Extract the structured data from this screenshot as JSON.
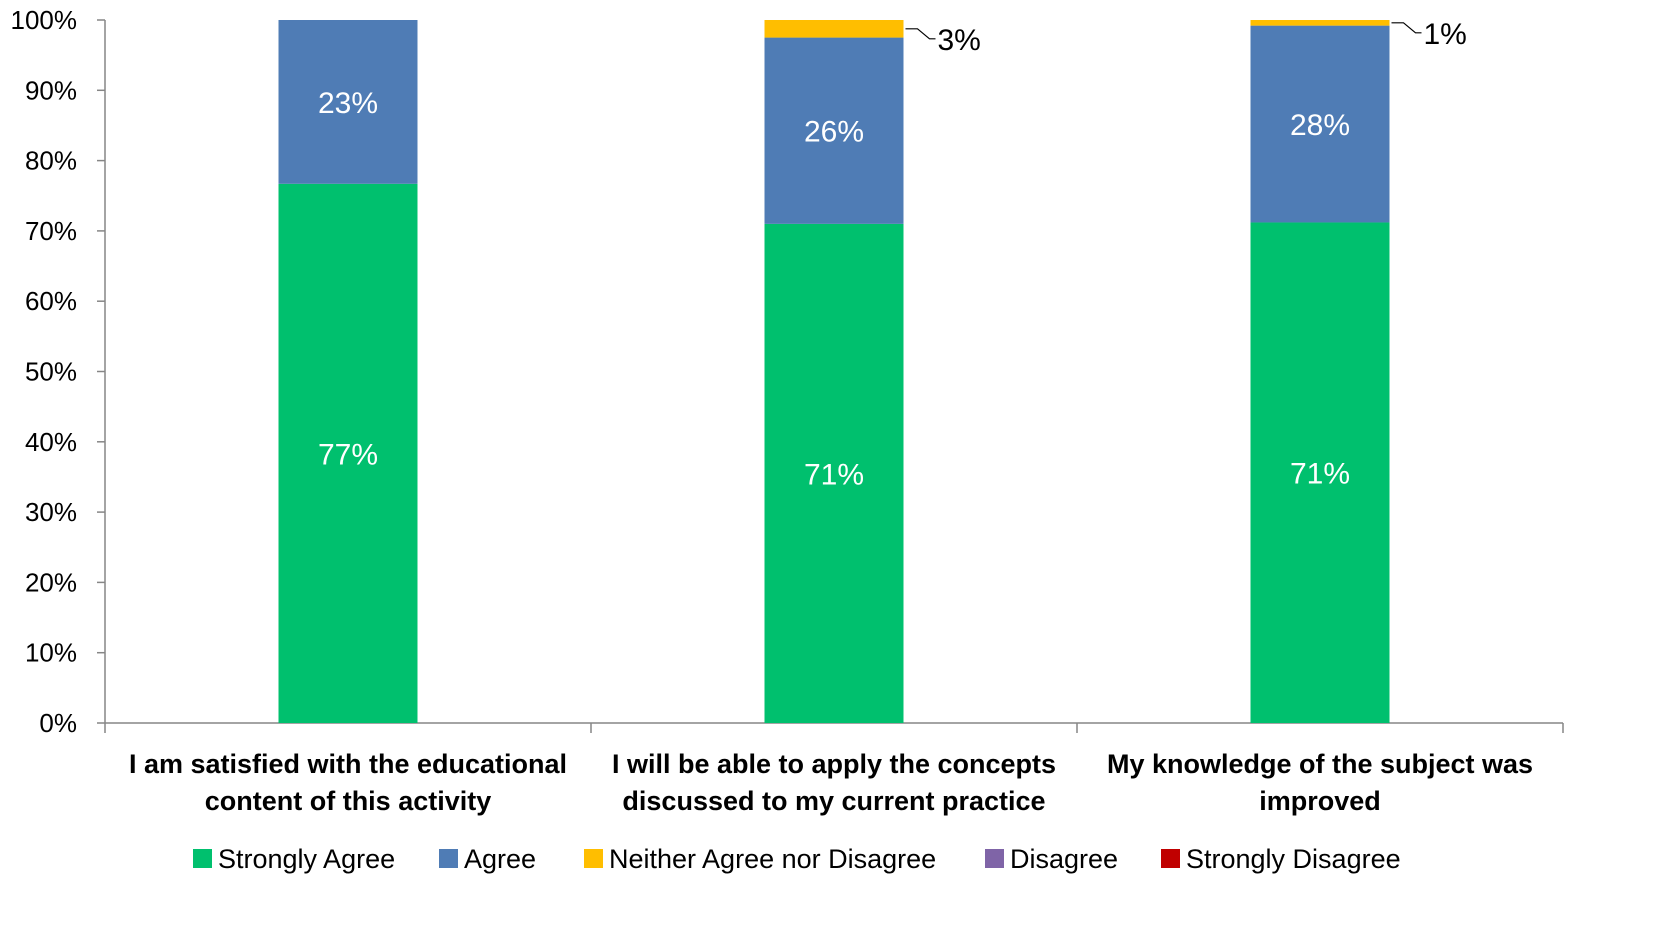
{
  "chart_data": {
    "type": "bar",
    "stacked": true,
    "title": "",
    "xlabel": "",
    "ylabel": "",
    "ylim": [
      0,
      100
    ],
    "y_ticks": [
      "0%",
      "10%",
      "20%",
      "30%",
      "40%",
      "50%",
      "60%",
      "70%",
      "80%",
      "90%",
      "100%"
    ],
    "grid": false,
    "legend_position": "bottom",
    "categories": [
      [
        "I am satisfied with the educational",
        "content of this activity"
      ],
      [
        "I will be able to apply the concepts",
        "discussed to my current practice"
      ],
      [
        "My knowledge of the subject was",
        "improved"
      ]
    ],
    "series": [
      {
        "name": "Strongly Agree",
        "color": "#00c06e",
        "values": [
          76.7,
          71.0,
          71.2
        ],
        "labels": [
          "77%",
          "71%",
          "71%"
        ],
        "label_color": "#ffffff"
      },
      {
        "name": "Agree",
        "color": "#4f7cb5",
        "values": [
          23.3,
          26.5,
          28.0
        ],
        "labels": [
          "23%",
          "26%",
          "28%"
        ],
        "label_color": "#ffffff"
      },
      {
        "name": "Neither Agree nor Disagree",
        "color": "#ffbe00",
        "values": [
          0,
          2.5,
          0.8
        ],
        "labels": [
          "",
          "3%",
          "1%"
        ],
        "label_color": "#000000",
        "label_style": "leader"
      },
      {
        "name": "Disagree",
        "color": "#7f64a7",
        "values": [
          0,
          0,
          0
        ],
        "labels": [
          "",
          "",
          ""
        ]
      },
      {
        "name": "Strongly Disagree",
        "color": "#c00000",
        "values": [
          0,
          0,
          0
        ],
        "labels": [
          "",
          "",
          ""
        ]
      }
    ]
  }
}
